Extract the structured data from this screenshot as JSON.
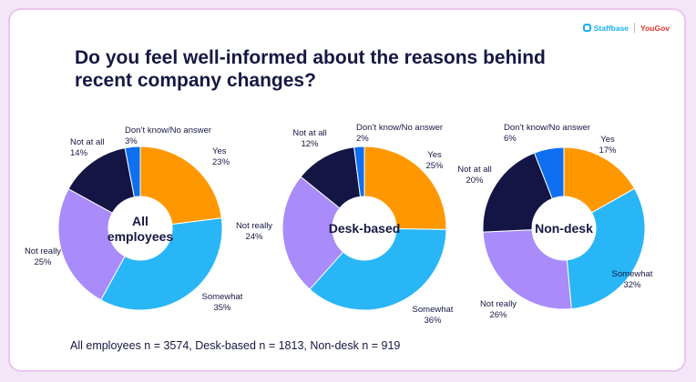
{
  "branding": {
    "staffbase": "Staffbase",
    "yougov": "YouGov"
  },
  "title_lines": [
    "Do you feel well-informed about the reasons behind",
    "recent company changes?"
  ],
  "footnote": "All employees n = 3574, Desk-based n = 1813, Non-desk n = 919",
  "colors": {
    "Yes": "#ff9800",
    "Somewhat": "#29b6f6",
    "Not really": "#a98bfa",
    "Not at all": "#141545",
    "Don't know/No answer": "#0e6ff0"
  },
  "chart_data": [
    {
      "type": "pie",
      "title": "All employees",
      "center_label": [
        "All",
        "employees"
      ],
      "slices": [
        {
          "label": "Yes",
          "value": 23
        },
        {
          "label": "Somewhat",
          "value": 35
        },
        {
          "label": "Not really",
          "value": 25
        },
        {
          "label": "Not at all",
          "value": 14
        },
        {
          "label": "Don’t know/No answer",
          "value": 3
        }
      ]
    },
    {
      "type": "pie",
      "title": "Desk-based",
      "center_label": [
        "Desk-based"
      ],
      "slices": [
        {
          "label": "Yes",
          "value": 25
        },
        {
          "label": "Somewhat",
          "value": 36
        },
        {
          "label": "Not really",
          "value": 24
        },
        {
          "label": "Not at all",
          "value": 12
        },
        {
          "label": "Don’t know/No answer",
          "value": 2
        }
      ]
    },
    {
      "type": "pie",
      "title": "Non-desk",
      "center_label": [
        "Non-desk"
      ],
      "slices": [
        {
          "label": "Yes",
          "value": 17
        },
        {
          "label": "Somewhat",
          "value": 32
        },
        {
          "label": "Not really",
          "value": 26
        },
        {
          "label": "Not at all",
          "value": 20
        },
        {
          "label": "Don’t know/No answer",
          "value": 6
        }
      ]
    }
  ]
}
